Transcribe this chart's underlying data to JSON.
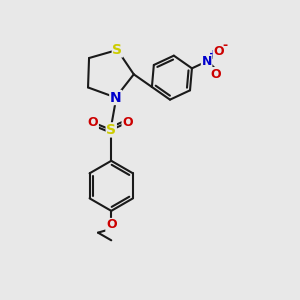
{
  "bg_color": "#e8e8e8",
  "bond_color": "#1a1a1a",
  "S_color": "#cccc00",
  "N_color": "#0000cc",
  "O_color": "#cc0000",
  "line_width": 1.5,
  "figsize": [
    3.0,
    3.0
  ],
  "dpi": 100,
  "xlim": [
    0,
    10
  ],
  "ylim": [
    0,
    10
  ]
}
